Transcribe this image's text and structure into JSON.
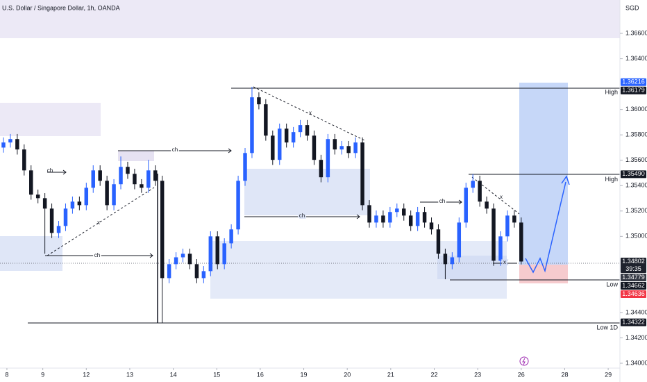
{
  "chart_data": {
    "type": "candlestick",
    "title": "U.S. Dollar / Singapore Dollar, 1h, OANDA",
    "currency": "SGD",
    "up_color": "#2962ff",
    "down_color": "#131722",
    "ylim": [
      1.34,
      1.36863
    ],
    "xlim": [
      -0.5,
      89.3
    ],
    "yticks": [
      {
        "value": 1.366,
        "label": "1.36600"
      },
      {
        "value": 1.364,
        "label": "1.36400"
      },
      {
        "value": 1.36,
        "label": "1.36000"
      },
      {
        "value": 1.358,
        "label": "1.35800"
      },
      {
        "value": 1.356,
        "label": "1.35600"
      },
      {
        "value": 1.354,
        "label": "1.35400"
      },
      {
        "value": 1.352,
        "label": "1.35200"
      },
      {
        "value": 1.35,
        "label": "1.35000"
      },
      {
        "value": 1.344,
        "label": "1.34400"
      },
      {
        "value": 1.342,
        "label": "1.34200"
      },
      {
        "value": 1.34,
        "label": "1.34000"
      }
    ],
    "xticks": [
      {
        "value": 0.5,
        "label": "8"
      },
      {
        "value": 5.7,
        "label": "9"
      },
      {
        "value": 12,
        "label": "12"
      },
      {
        "value": 18.3,
        "label": "13"
      },
      {
        "value": 24.6,
        "label": "14"
      },
      {
        "value": 30.9,
        "label": "15"
      },
      {
        "value": 37.2,
        "label": "16"
      },
      {
        "value": 43.5,
        "label": "19"
      },
      {
        "value": 49.8,
        "label": "20"
      },
      {
        "value": 56.1,
        "label": "21"
      },
      {
        "value": 62.4,
        "label": "22"
      },
      {
        "value": 68.7,
        "label": "23"
      },
      {
        "value": 75,
        "label": "26"
      },
      {
        "value": 81.3,
        "label": "28"
      },
      {
        "value": 87.6,
        "label": "29"
      }
    ],
    "open": [
      1.357,
      1.3574,
      1.35767,
      1.35685,
      1.3552,
      1.35329,
      1.35301,
      1.35219,
      1.35027,
      1.35082,
      1.35219,
      1.35274,
      1.35246,
      1.35383,
      1.3552,
      1.35438,
      1.35246,
      1.35411,
      1.35548,
      1.35493,
      1.35411,
      1.35383,
      1.3552,
      1.35438,
      1.34671,
      1.34781,
      1.34835,
      1.34863,
      1.34781,
      1.34671,
      1.34726,
      1.35,
      1.34781,
      1.34945,
      1.35055,
      1.35438,
      1.35657,
      1.36096,
      1.36041,
      1.35794,
      1.35603,
      1.35849,
      1.3574,
      1.35822,
      1.35877,
      1.35794,
      1.35603,
      1.35466,
      1.35767,
      1.35685,
      1.35712,
      1.35657,
      1.3574,
      1.35246,
      1.35109,
      1.35164,
      1.35109,
      1.35192,
      1.35219,
      1.35164,
      1.35082,
      1.35192,
      1.35109,
      1.35055,
      1.34863,
      1.34781,
      1.34835,
      1.35109,
      1.35383,
      1.35438,
      1.35274,
      1.35219,
      1.34808,
      1.35,
      1.35164,
      1.35109
    ],
    "high": [
      1.3578,
      1.35807,
      1.35807,
      1.35725,
      1.3556,
      1.35369,
      1.35341,
      1.35259,
      1.35122,
      1.35259,
      1.35314,
      1.35314,
      1.35423,
      1.3556,
      1.3556,
      1.35478,
      1.35451,
      1.3563,
      1.35588,
      1.35533,
      1.35451,
      1.35603,
      1.3556,
      1.35478,
      1.34821,
      1.34875,
      1.34903,
      1.34903,
      1.34821,
      1.34766,
      1.3504,
      1.3504,
      1.34985,
      1.35095,
      1.35478,
      1.35697,
      1.36179,
      1.36136,
      1.36081,
      1.35834,
      1.35889,
      1.35889,
      1.35862,
      1.35917,
      1.35917,
      1.35834,
      1.35643,
      1.35807,
      1.35807,
      1.35752,
      1.35752,
      1.3578,
      1.3578,
      1.35286,
      1.35204,
      1.35204,
      1.35232,
      1.35259,
      1.35259,
      1.35204,
      1.35232,
      1.35232,
      1.35149,
      1.35095,
      1.34903,
      1.34875,
      1.35149,
      1.35423,
      1.3549,
      1.35478,
      1.35314,
      1.35259,
      1.3504,
      1.35204,
      1.35204,
      1.35149
    ],
    "low": [
      1.3566,
      1.357,
      1.35645,
      1.3548,
      1.35289,
      1.35261,
      1.34863,
      1.34987,
      1.34987,
      1.35042,
      1.35179,
      1.35206,
      1.35206,
      1.35343,
      1.35398,
      1.35206,
      1.35206,
      1.35371,
      1.35453,
      1.35371,
      1.35343,
      1.35343,
      1.35398,
      1.34315,
      1.34631,
      1.34741,
      1.34795,
      1.34741,
      1.34631,
      1.34631,
      1.34686,
      1.34741,
      1.34741,
      1.34905,
      1.35015,
      1.35398,
      1.35617,
      1.36001,
      1.35754,
      1.35563,
      1.35563,
      1.357,
      1.357,
      1.35782,
      1.35754,
      1.35563,
      1.35426,
      1.35426,
      1.35645,
      1.35645,
      1.35617,
      1.35617,
      1.35206,
      1.35069,
      1.35069,
      1.35069,
      1.35069,
      1.35152,
      1.35124,
      1.35042,
      1.35042,
      1.35069,
      1.35015,
      1.34823,
      1.34662,
      1.34741,
      1.34795,
      1.35069,
      1.35343,
      1.35234,
      1.35179,
      1.34768,
      1.34768,
      1.3496,
      1.35069,
      1.34779
    ],
    "close": [
      1.3574,
      1.35767,
      1.35685,
      1.3552,
      1.35329,
      1.35301,
      1.35219,
      1.35027,
      1.35082,
      1.35219,
      1.35274,
      1.35246,
      1.35383,
      1.3552,
      1.35438,
      1.35246,
      1.35411,
      1.35548,
      1.35493,
      1.35411,
      1.35383,
      1.3552,
      1.35438,
      1.34671,
      1.34781,
      1.34835,
      1.34863,
      1.34781,
      1.34671,
      1.34726,
      1.35,
      1.34781,
      1.34945,
      1.35055,
      1.35438,
      1.35657,
      1.36096,
      1.36041,
      1.35794,
      1.35603,
      1.35849,
      1.3574,
      1.35822,
      1.35877,
      1.35794,
      1.35603,
      1.35466,
      1.35767,
      1.35685,
      1.35712,
      1.35657,
      1.3574,
      1.35246,
      1.35109,
      1.35164,
      1.35109,
      1.35192,
      1.35219,
      1.35164,
      1.35082,
      1.35192,
      1.35109,
      1.35055,
      1.34863,
      1.34781,
      1.34835,
      1.35109,
      1.35383,
      1.35438,
      1.35274,
      1.35219,
      1.34808,
      1.35,
      1.35164,
      1.35109,
      1.34802
    ],
    "price_tags": [
      {
        "value": 1.36216,
        "label": "1.36216",
        "color": "#2962ff"
      },
      {
        "value": 1.36179,
        "label": "1.36179",
        "color": "#131722",
        "side": "High"
      },
      {
        "value": 1.3549,
        "label": "1.35490",
        "color": "#131722",
        "side": "High"
      },
      {
        "value": 1.34802,
        "label": "1.34802",
        "color": "#1e222d",
        "timer": "39:35"
      },
      {
        "value": 1.34779,
        "label": "1.34779",
        "color": "#363a45"
      },
      {
        "value": 1.34662,
        "label": "1.34662",
        "color": "#131722",
        "side": "Low"
      },
      {
        "value": 1.34636,
        "label": "1.34636",
        "color": "#f23645"
      },
      {
        "value": 1.34322,
        "label": "1.34322",
        "color": "#131722",
        "side": "Low 1D"
      }
    ],
    "annotations": [
      "ch",
      "ch",
      "ch",
      "ch",
      "ch",
      "x",
      "x",
      "x",
      "x"
    ]
  }
}
